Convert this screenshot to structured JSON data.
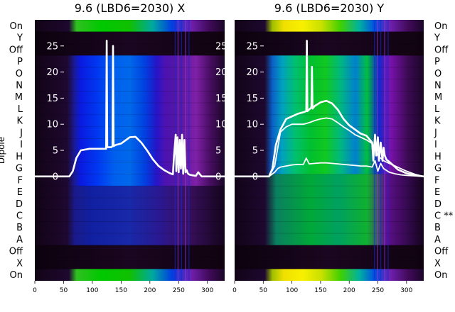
{
  "chart_data": [
    {
      "type": "heatmap",
      "title": "9.6 (LBD6=2030) X",
      "ylabel": "Dipole",
      "xlim": [
        0,
        330
      ],
      "x_ticks": [
        "0",
        "50",
        "100",
        "150",
        "200",
        "250",
        "300"
      ],
      "overlay_ylim": [
        -20,
        30
      ],
      "overlay_ticks": [
        "0",
        "5",
        "10",
        "15",
        "20",
        "25"
      ],
      "rows_top_to_bottom": [
        "On",
        "Y",
        "Off",
        "P",
        "O",
        "N",
        "M",
        "L",
        "K",
        "J",
        "I",
        "H",
        "G",
        "F",
        "E",
        "D",
        "C",
        "B",
        "A",
        "Off",
        "X",
        "On"
      ],
      "series": [
        {
          "x": [
            0,
            60,
            66,
            72,
            80,
            95,
            110,
            120,
            124,
            125,
            126,
            128,
            133,
            135,
            136,
            137,
            140,
            150,
            165,
            175,
            185,
            195,
            205,
            215,
            225,
            235,
            240,
            242,
            245,
            246,
            248,
            250,
            252,
            254,
            256,
            258,
            260,
            262,
            264,
            266,
            268,
            270,
            275,
            280,
            284,
            290,
            310,
            330
          ],
          "y": [
            0,
            0,
            1,
            3.5,
            5,
            5.3,
            5.3,
            5.3,
            5.3,
            26,
            5.6,
            5.6,
            5.6,
            5.8,
            25,
            5.8,
            6,
            6.3,
            7.5,
            7.6,
            6.5,
            5,
            3.3,
            2,
            1.2,
            0.6,
            0.4,
            4,
            8,
            1,
            7.5,
            0.8,
            7,
            1.5,
            8,
            0.5,
            7,
            0.8,
            1.2,
            0.6,
            0.4,
            0.3,
            0.2,
            0.1,
            0.8,
            0,
            0,
            0
          ]
        }
      ]
    },
    {
      "type": "heatmap",
      "title": "9.6 (LBD6=2030) Y",
      "xlim": [
        0,
        330
      ],
      "x_ticks": [
        "0",
        "50",
        "100",
        "150",
        "200",
        "250",
        "300"
      ],
      "overlay_ylim": [
        -20,
        30
      ],
      "overlay_ticks": [
        "0",
        "5",
        "10",
        "15",
        "20",
        "25"
      ],
      "rows_top_to_bottom": [
        "On",
        "Y",
        "Off",
        "P",
        "O",
        "N",
        "M",
        "L",
        "K",
        "J",
        "I",
        "H",
        "G",
        "F",
        "E",
        "D",
        "C **",
        "B",
        "A",
        "Off",
        "X",
        "On"
      ],
      "series": [
        {
          "x": [
            0,
            60,
            66,
            72,
            80,
            90,
            100,
            110,
            120,
            125,
            126,
            127,
            130,
            134,
            135,
            136,
            140,
            150,
            160,
            170,
            180,
            190,
            200,
            210,
            220,
            230,
            240,
            242,
            245,
            247,
            250,
            252,
            255,
            258,
            260,
            262,
            265,
            270,
            275,
            285,
            300,
            315,
            330
          ],
          "y": [
            0,
            0,
            1.5,
            6,
            9,
            11,
            11.5,
            12,
            12.3,
            12.5,
            26,
            12.5,
            12.8,
            13.2,
            21,
            13,
            13.5,
            14.2,
            14.5,
            14,
            12.8,
            11,
            9.8,
            9,
            8.2,
            7.8,
            6.5,
            3,
            8,
            4,
            7.5,
            3,
            6.5,
            3,
            5.5,
            4,
            3.2,
            2.8,
            2.3,
            1.3,
            0.6,
            0.2,
            0
          ]
        },
        {
          "x": [
            0,
            60,
            70,
            80,
            90,
            100,
            110,
            120,
            130,
            140,
            150,
            160,
            170,
            180,
            190,
            200,
            210,
            220,
            230,
            240,
            245,
            250,
            255,
            260,
            270,
            280,
            290,
            300,
            315,
            330
          ],
          "y": [
            0,
            0,
            2,
            8.5,
            9.5,
            10,
            10,
            10,
            10.3,
            10.7,
            11,
            11.2,
            11,
            10.3,
            9.5,
            8.8,
            8,
            7.5,
            7,
            6.3,
            5.5,
            4,
            3.5,
            3,
            2.5,
            2,
            1.5,
            1,
            0.4,
            0
          ]
        },
        {
          "x": [
            0,
            60,
            70,
            75,
            80,
            90,
            100,
            110,
            120,
            125,
            130,
            140,
            150,
            160,
            170,
            180,
            190,
            200,
            210,
            220,
            230,
            240,
            245,
            250,
            255,
            260,
            270,
            280,
            290,
            300,
            315,
            330
          ],
          "y": [
            0,
            0,
            0.8,
            1.5,
            1.8,
            2,
            2.2,
            2.3,
            2.3,
            3.5,
            2.4,
            2.5,
            2.6,
            2.6,
            2.5,
            2.4,
            2.3,
            2.2,
            2.1,
            2,
            2,
            1.8,
            3,
            1,
            2.5,
            1.5,
            0.8,
            0.5,
            0.3,
            0.2,
            0.1,
            0
          ]
        }
      ]
    }
  ]
}
